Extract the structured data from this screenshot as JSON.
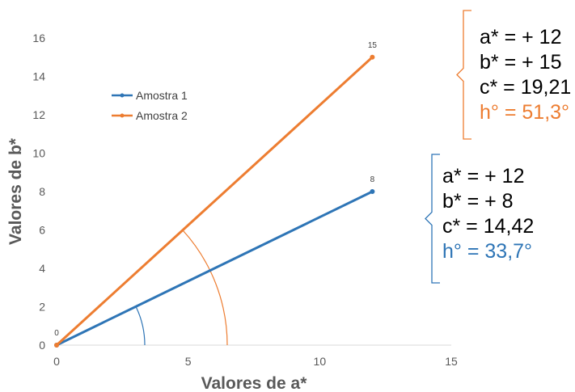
{
  "chart_data": {
    "type": "line",
    "xlabel": "Valores de a*",
    "ylabel": "Valores de b*",
    "xlim": [
      0,
      15
    ],
    "ylim": [
      0,
      16
    ],
    "x_ticks": [
      0,
      5,
      10,
      15
    ],
    "y_ticks": [
      0,
      2,
      4,
      6,
      8,
      10,
      12,
      14,
      16
    ],
    "grid": false,
    "legend_position": "upper-left inside plot",
    "series": [
      {
        "name": "Amostra 1",
        "color": "#2E75B6",
        "points": [
          {
            "x": 0,
            "y": 0,
            "label": "0"
          },
          {
            "x": 12,
            "y": 8,
            "label": "8"
          }
        ]
      },
      {
        "name": "Amostra 2",
        "color": "#ED7D31",
        "points": [
          {
            "x": 0,
            "y": 0,
            "label": ""
          },
          {
            "x": 12,
            "y": 15,
            "label": "15"
          }
        ]
      }
    ],
    "annotations": [
      {
        "id": "amostra-2-box",
        "color": "#ED7D31",
        "lines": [
          {
            "text": "a* = + 12",
            "color": "#000000"
          },
          {
            "text": "b* = + 15",
            "color": "#000000"
          },
          {
            "text": "c* = 19,21",
            "color": "#000000"
          },
          {
            "text": "h° = 51,3°",
            "color": "#ED7D31"
          }
        ]
      },
      {
        "id": "amostra-1-box",
        "color": "#2E75B6",
        "lines": [
          {
            "text": "a* = + 12",
            "color": "#000000"
          },
          {
            "text": "b* = + 8",
            "color": "#000000"
          },
          {
            "text": "c* = 14,42",
            "color": "#000000"
          },
          {
            "text": "h° = 33,7°",
            "color": "#2E75B6"
          }
        ]
      }
    ],
    "angle_arcs": [
      {
        "series": "Amostra 1",
        "color": "#2E75B6",
        "hue_angle_deg": 33.7
      },
      {
        "series": "Amostra 2",
        "color": "#ED7D31",
        "hue_angle_deg": 51.3
      }
    ]
  }
}
